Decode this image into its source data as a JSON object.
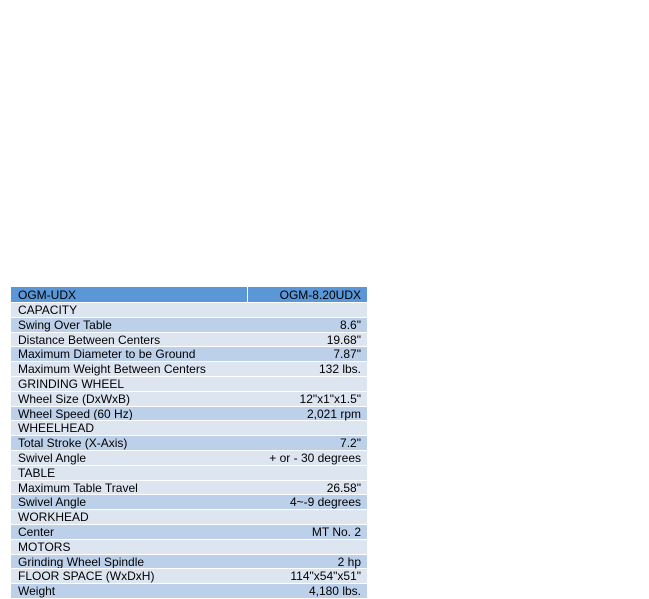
{
  "table": {
    "header": {
      "label": "OGM-UDX",
      "value": "OGM-8.20UDX"
    },
    "rows": [
      {
        "type": "section",
        "label": "CAPACITY",
        "value": ""
      },
      {
        "type": "item",
        "label": "Swing Over Table",
        "value": "8.6\""
      },
      {
        "type": "item",
        "label": "Distance Between Centers",
        "value": "19.68\""
      },
      {
        "type": "item",
        "label": "Maximum Diameter to be Ground",
        "value": "7.87\""
      },
      {
        "type": "item",
        "label": "Maximum Weight Between Centers",
        "value": "132 lbs."
      },
      {
        "type": "section",
        "label": "GRINDING WHEEL",
        "value": ""
      },
      {
        "type": "item",
        "label": "Wheel Size (DxWxB)",
        "value": "12\"x1\"x1.5\""
      },
      {
        "type": "item",
        "label": "Wheel Speed (60 Hz)",
        "value": "2,021 rpm"
      },
      {
        "type": "section",
        "label": "WHEELHEAD",
        "value": ""
      },
      {
        "type": "item",
        "label": "Total Stroke (X-Axis)",
        "value": "7.2\""
      },
      {
        "type": "item",
        "label": "Swivel Angle",
        "value": "+ or - 30 degrees"
      },
      {
        "type": "section",
        "label": "TABLE",
        "value": ""
      },
      {
        "type": "item",
        "label": "Maximum Table Travel",
        "value": "26.58\""
      },
      {
        "type": "item",
        "label": "Swivel Angle",
        "value": "4~-9 degrees"
      },
      {
        "type": "section",
        "label": "WORKHEAD",
        "value": ""
      },
      {
        "type": "item",
        "label": "Center",
        "value": "MT No. 2"
      },
      {
        "type": "section",
        "label": "MOTORS",
        "value": ""
      },
      {
        "type": "item",
        "label": "Grinding Wheel Spindle",
        "value": "2 hp"
      },
      {
        "type": "item",
        "label": "FLOOR SPACE (WxDxH)",
        "value": "114\"x54\"x51\""
      },
      {
        "type": "item",
        "label": "Weight",
        "value": "4,180 lbs."
      }
    ]
  },
  "colors": {
    "header_bg": "#5b96d6",
    "row_dark": "#bdd0ea",
    "row_light": "#dde5f1"
  }
}
